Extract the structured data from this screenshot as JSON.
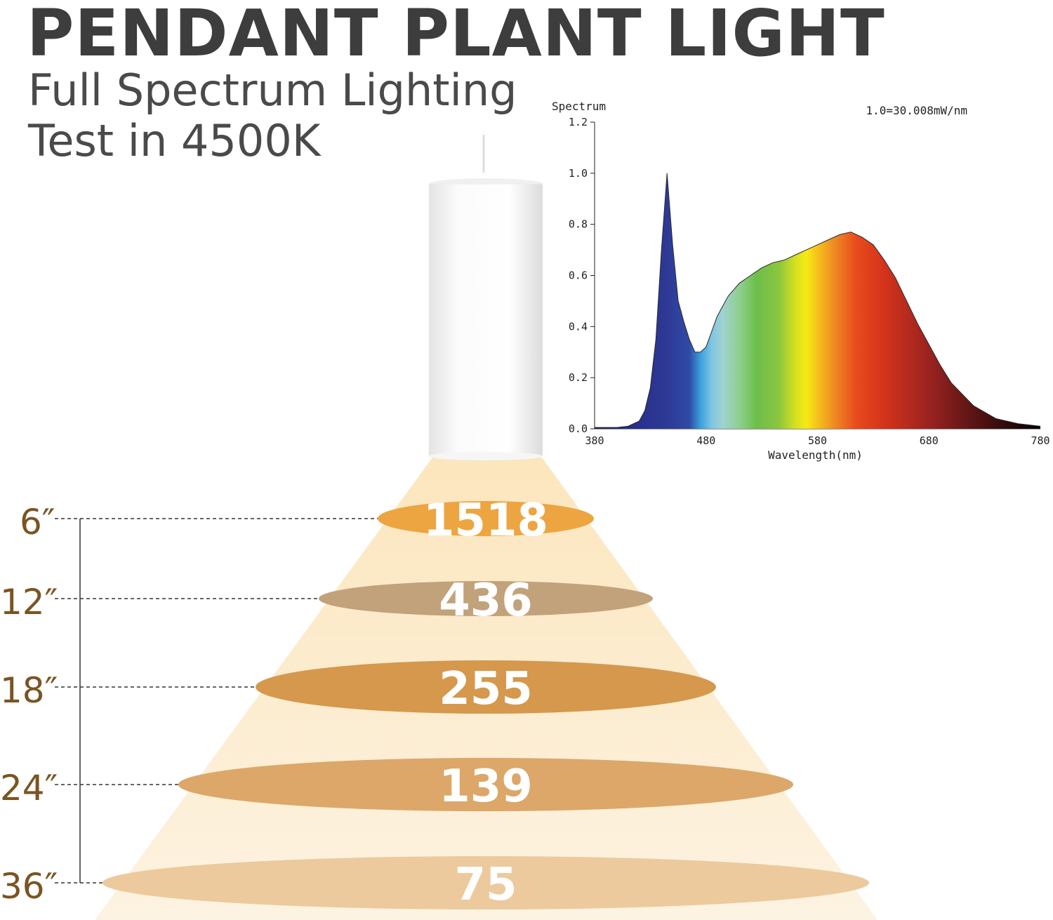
{
  "header": {
    "title": "PENDANT PLANT LIGHT",
    "subtitle_line1": "Full Spectrum Lighting",
    "subtitle_line2": "Test in 4500K"
  },
  "colors": {
    "title": "#3d3d3d",
    "distance_label": "#7a5422",
    "light_cone": "#fdebc9"
  },
  "chart_data": [
    {
      "type": "area",
      "title": "Spectrum",
      "annotation": "1.0=30.008mW/nm",
      "xlabel": "Wavelength(nm)",
      "ylabel": "",
      "xlim": [
        380,
        780
      ],
      "ylim": [
        0,
        1.2
      ],
      "x_ticks": [
        "380",
        "480",
        "580",
        "680",
        "780"
      ],
      "y_ticks": [
        "0.0",
        "0.2",
        "0.4",
        "0.6",
        "0.8",
        "1.0",
        "1.2"
      ],
      "grid": false,
      "x": [
        380,
        400,
        410,
        420,
        425,
        430,
        435,
        440,
        445,
        450,
        455,
        460,
        465,
        470,
        475,
        480,
        485,
        490,
        500,
        510,
        520,
        530,
        540,
        550,
        560,
        570,
        580,
        590,
        600,
        610,
        620,
        630,
        640,
        650,
        660,
        670,
        680,
        690,
        700,
        720,
        740,
        760,
        780
      ],
      "y": [
        0.005,
        0.005,
        0.01,
        0.03,
        0.07,
        0.16,
        0.35,
        0.7,
        1.0,
        0.72,
        0.5,
        0.42,
        0.35,
        0.3,
        0.3,
        0.32,
        0.38,
        0.44,
        0.52,
        0.57,
        0.6,
        0.63,
        0.65,
        0.66,
        0.68,
        0.7,
        0.72,
        0.74,
        0.76,
        0.77,
        0.75,
        0.72,
        0.66,
        0.59,
        0.5,
        0.41,
        0.33,
        0.25,
        0.18,
        0.09,
        0.04,
        0.02,
        0.01
      ]
    },
    {
      "type": "bar",
      "categories": [
        "6″",
        "12″",
        "18″",
        "24″",
        "36″"
      ],
      "values": [
        1518,
        436,
        255,
        139,
        75
      ],
      "value_labels": [
        "1518",
        "436",
        "255",
        "139",
        "75"
      ],
      "colors": [
        "#eca540",
        "#c2a27b",
        "#d5984c",
        "#dca769",
        "#ecca9d"
      ]
    }
  ]
}
